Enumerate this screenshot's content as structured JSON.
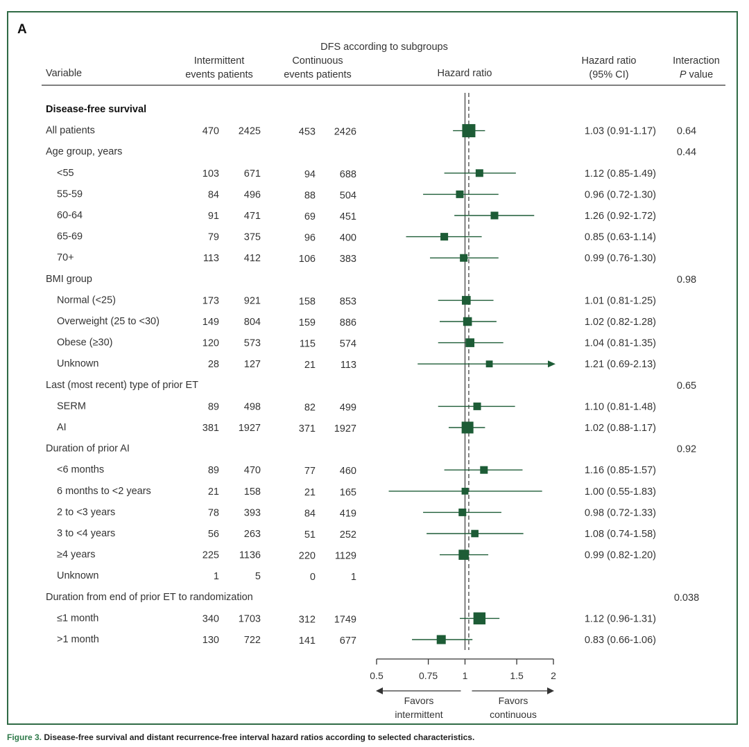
{
  "panel_label": "A",
  "chart_data": {
    "type": "forest",
    "title": "DFS according to subgroups",
    "columns": {
      "variable": "Variable",
      "intermittent": [
        "Intermittent",
        "events patients"
      ],
      "continuous": [
        "Continuous",
        "events patients"
      ],
      "plot": "Hazard ratio",
      "hr": [
        "Hazard ratio",
        "(95% CI)"
      ],
      "interaction": [
        "Interaction",
        "P",
        "value"
      ]
    },
    "rows": [
      {
        "label": "Disease-free survival",
        "level": 0,
        "bold": true
      },
      {
        "label": "All patients",
        "level": 0,
        "ie": "470",
        "ip": "2425",
        "ce": "453",
        "cp": "2426",
        "hr": 1.03,
        "lo": 0.91,
        "hi": 1.17,
        "hr_text": "1.03 (0.91-1.17)",
        "p": "0.64",
        "size": 3
      },
      {
        "label": "Age group, years",
        "level": 0,
        "p": "0.44"
      },
      {
        "label": "<55",
        "level": 1,
        "ie": "103",
        "ip": "671",
        "ce": "94",
        "cp": "688",
        "hr": 1.12,
        "lo": 0.85,
        "hi": 1.49,
        "hr_text": "1.12 (0.85-1.49)",
        "size": 1
      },
      {
        "label": "55-59",
        "level": 1,
        "ie": "84",
        "ip": "496",
        "ce": "88",
        "cp": "504",
        "hr": 0.96,
        "lo": 0.72,
        "hi": 1.3,
        "hr_text": "0.96 (0.72-1.30)",
        "size": 1
      },
      {
        "label": "60-64",
        "level": 1,
        "ie": "91",
        "ip": "471",
        "ce": "69",
        "cp": "451",
        "hr": 1.26,
        "lo": 0.92,
        "hi": 1.72,
        "hr_text": "1.26 (0.92-1.72)",
        "size": 1
      },
      {
        "label": "65-69",
        "level": 1,
        "ie": "79",
        "ip": "375",
        "ce": "96",
        "cp": "400",
        "hr": 0.85,
        "lo": 0.63,
        "hi": 1.14,
        "hr_text": "0.85 (0.63-1.14)",
        "size": 1
      },
      {
        "label": "70+",
        "level": 1,
        "ie": "113",
        "ip": "412",
        "ce": "106",
        "cp": "383",
        "hr": 0.99,
        "lo": 0.76,
        "hi": 1.3,
        "hr_text": "0.99 (0.76-1.30)",
        "size": 1
      },
      {
        "label": "BMI group",
        "level": 0,
        "p": "0.98"
      },
      {
        "label": "Normal (<25)",
        "level": 1,
        "ie": "173",
        "ip": "921",
        "ce": "158",
        "cp": "853",
        "hr": 1.01,
        "lo": 0.81,
        "hi": 1.25,
        "hr_text": "1.01 (0.81-1.25)",
        "size": 1.4
      },
      {
        "label": "Overweight (25 to <30)",
        "level": 1,
        "ie": "149",
        "ip": "804",
        "ce": "159",
        "cp": "886",
        "hr": 1.02,
        "lo": 0.82,
        "hi": 1.28,
        "hr_text": "1.02 (0.82-1.28)",
        "size": 1.4
      },
      {
        "label": "Obese (≥30)",
        "level": 1,
        "ie": "120",
        "ip": "573",
        "ce": "115",
        "cp": "574",
        "hr": 1.04,
        "lo": 0.81,
        "hi": 1.35,
        "hr_text": "1.04 (0.81-1.35)",
        "size": 1.4
      },
      {
        "label": "Unknown",
        "level": 1,
        "ie": "28",
        "ip": "127",
        "ce": "21",
        "cp": "113",
        "hr": 1.21,
        "lo": 0.69,
        "hi": 2.13,
        "hr_text": "1.21 (0.69-2.13)",
        "size": 0.7,
        "arrow": true
      },
      {
        "label": "Last (most recent) type of prior ET",
        "level": 0,
        "p": "0.65"
      },
      {
        "label": "SERM",
        "level": 1,
        "ie": "89",
        "ip": "498",
        "ce": "82",
        "cp": "499",
        "hr": 1.1,
        "lo": 0.81,
        "hi": 1.48,
        "hr_text": "1.10 (0.81-1.48)",
        "size": 1
      },
      {
        "label": "AI",
        "level": 1,
        "ie": "381",
        "ip": "1927",
        "ce": "371",
        "cp": "1927",
        "hr": 1.02,
        "lo": 0.88,
        "hi": 1.17,
        "hr_text": "1.02 (0.88-1.17)",
        "size": 2.5
      },
      {
        "label": "Duration of prior AI",
        "level": 0,
        "p": "0.92"
      },
      {
        "label": "<6 months",
        "level": 1,
        "ie": "89",
        "ip": "470",
        "ce": "77",
        "cp": "460",
        "hr": 1.16,
        "lo": 0.85,
        "hi": 1.57,
        "hr_text": "1.16 (0.85-1.57)",
        "size": 1
      },
      {
        "label": "6 months to <2 years",
        "level": 1,
        "ie": "21",
        "ip": "158",
        "ce": "21",
        "cp": "165",
        "hr": 1.0,
        "lo": 0.55,
        "hi": 1.83,
        "hr_text": "1.00 (0.55-1.83)",
        "size": 0.7
      },
      {
        "label": "2 to <3 years",
        "level": 1,
        "ie": "78",
        "ip": "393",
        "ce": "84",
        "cp": "419",
        "hr": 0.98,
        "lo": 0.72,
        "hi": 1.33,
        "hr_text": "0.98 (0.72-1.33)",
        "size": 1
      },
      {
        "label": "3 to <4 years",
        "level": 1,
        "ie": "56",
        "ip": "263",
        "ce": "51",
        "cp": "252",
        "hr": 1.08,
        "lo": 0.74,
        "hi": 1.58,
        "hr_text": "1.08 (0.74-1.58)",
        "size": 0.9
      },
      {
        "label": "≥4 years",
        "level": 1,
        "ie": "225",
        "ip": "1136",
        "ce": "220",
        "cp": "1129",
        "hr": 0.99,
        "lo": 0.82,
        "hi": 1.2,
        "hr_text": "0.99 (0.82-1.20)",
        "size": 1.9
      },
      {
        "label": "Unknown",
        "level": 1,
        "ie": "1",
        "ip": "5",
        "ce": "0",
        "cp": "1"
      },
      {
        "label": "Duration from end of prior ET to randomization",
        "level": 0,
        "p": "0.038"
      },
      {
        "label": "≤1 month",
        "level": 1,
        "ie": "340",
        "ip": "1703",
        "ce": "312",
        "cp": "1749",
        "hr": 1.12,
        "lo": 0.96,
        "hi": 1.31,
        "hr_text": "1.12 (0.96-1.31)",
        "size": 2.6
      },
      {
        "label": ">1 month",
        "level": 1,
        "ie": "130",
        "ip": "722",
        "ce": "141",
        "cp": "677",
        "hr": 0.83,
        "lo": 0.66,
        "hi": 1.06,
        "hr_text": "0.83 (0.66-1.06)",
        "size": 1.5
      }
    ],
    "x_axis": {
      "scale": "log",
      "range": [
        0.5,
        2
      ],
      "ticks": [
        0.5,
        0.75,
        1,
        1.5,
        2
      ],
      "tick_labels": [
        "0.5",
        "0.75",
        "1",
        "1.5",
        "2"
      ],
      "reference_line": 1,
      "overall_line": 1.03
    },
    "favors_left": [
      "Favors",
      "intermittent"
    ],
    "favors_right": [
      "Favors",
      "continuous"
    ]
  },
  "caption": {
    "label": "Figure 3.",
    "text": "Disease-free survival and distant recurrence-free interval hazard ratios according to selected characteristics."
  },
  "colors": {
    "marker": "#1d5c36",
    "frame": "#2f6a45",
    "text": "#333333",
    "caption_label": "#2f7a4a"
  }
}
